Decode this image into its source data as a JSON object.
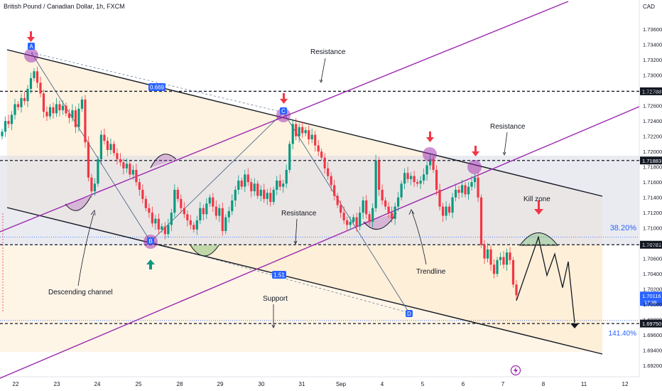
{
  "header": {
    "symbol_title": "British Pound / Canadian Dollar, 1h, FXCM",
    "currency": "CAD",
    "series_color": "#089981",
    "down_color": "#f23645"
  },
  "chart_data": {
    "type": "candlestick",
    "ylim": [
      1.691,
      1.7375
    ],
    "y_ticks": [
      "1.73600",
      "1.73400",
      "1.73200",
      "1.73000",
      "1.72800",
      "1.72600",
      "1.72400",
      "1.72200",
      "1.72000",
      "1.71800",
      "1.71600",
      "1.71400",
      "1.71200",
      "1.71000",
      "1.70800",
      "1.70600",
      "1.70400",
      "1.70200",
      "1.70000",
      "1.69800",
      "1.69600",
      "1.69400",
      "1.69200"
    ],
    "x_ticks": [
      "22",
      "23",
      "24",
      "25",
      "28",
      "29",
      "30",
      "31",
      "Sep",
      "4",
      "5",
      "6",
      "7",
      "8",
      "11",
      "12"
    ],
    "price_badges": [
      {
        "label": "1.72788",
        "value": 1.72788,
        "color": "#131722"
      },
      {
        "label": "1.71883",
        "value": 1.71883,
        "color": "#131722"
      },
      {
        "label": "1.70781",
        "value": 1.70781,
        "color": "#131722"
      },
      {
        "label": "1.70116",
        "sublabel": "17:38",
        "value": 1.70116,
        "color": "#2962ff"
      },
      {
        "label": "1.69750",
        "value": 1.6975,
        "color": "#131722"
      }
    ],
    "horizontal_levels": [
      {
        "value": 1.72788,
        "style": "dashed"
      },
      {
        "value": 1.71883,
        "style": "dashed"
      },
      {
        "value": 1.70781,
        "style": "dashed"
      },
      {
        "value": 1.6975,
        "style": "dashed"
      }
    ],
    "fib_levels": [
      {
        "label": "38.20%",
        "value": 1.7088
      },
      {
        "label": "141.40%",
        "value": 1.6979
      }
    ],
    "pattern_labels": [
      "A",
      "B",
      "C",
      "D"
    ],
    "pattern_ratios": [
      "0.669",
      "1.51"
    ],
    "annotations": [
      "Resistance",
      "Resistance",
      "Resistance",
      "Kill zone",
      "Descending channel",
      "Support",
      "Trendline"
    ],
    "close": [
      1.7226,
      1.724,
      1.7236,
      1.7248,
      1.7262,
      1.7258,
      1.727,
      1.7266,
      1.7282,
      1.7296,
      1.7305,
      1.729,
      1.7276,
      1.7252,
      1.7246,
      1.7258,
      1.725,
      1.7262,
      1.7254,
      1.726,
      1.725,
      1.7244,
      1.7254,
      1.7232,
      1.7256,
      1.7268,
      1.7212,
      1.7166,
      1.7148,
      1.7158,
      1.719,
      1.7222,
      1.7214,
      1.7202,
      1.721,
      1.7198,
      1.719,
      1.7186,
      1.7178,
      1.7184,
      1.717,
      1.7176,
      1.716,
      1.715,
      1.7138,
      1.7126,
      1.712,
      1.7106,
      1.7112,
      1.7098,
      1.7102,
      1.7092,
      1.7104,
      1.712,
      1.715,
      1.7138,
      1.7126,
      1.7118,
      1.711,
      1.7104,
      1.7098,
      1.711,
      1.7126,
      1.7118,
      1.7132,
      1.714,
      1.7128,
      1.7116,
      1.7126,
      1.7096,
      1.7114,
      1.7122,
      1.7136,
      1.715,
      1.7162,
      1.7154,
      1.717,
      1.716,
      1.7148,
      1.7158,
      1.7142,
      1.715,
      1.7138,
      1.7146,
      1.7134,
      1.715,
      1.7162,
      1.7154,
      1.7158,
      1.7176,
      1.721,
      1.7236,
      1.722,
      1.7232,
      1.7224,
      1.7228,
      1.7216,
      1.7222,
      1.7208,
      1.72,
      1.7192,
      1.7178,
      1.7168,
      1.7156,
      1.7142,
      1.713,
      1.712,
      1.711,
      1.7104,
      1.7108,
      1.7114,
      1.7102,
      1.712,
      1.7136,
      1.7118,
      1.7108,
      1.7126,
      1.7188,
      1.715,
      1.7136,
      1.7128,
      1.712,
      1.7112,
      1.7128,
      1.714,
      1.7158,
      1.7172,
      1.7164,
      1.7168,
      1.716,
      1.7158,
      1.7162,
      1.717,
      1.7182,
      1.719,
      1.7176,
      1.715,
      1.7128,
      1.7116,
      1.7128,
      1.712,
      1.714,
      1.715,
      1.7146,
      1.7156,
      1.7144,
      1.7154,
      1.716,
      1.7166,
      1.714,
      1.7078,
      1.706,
      1.7072,
      1.7052,
      1.704,
      1.7058,
      1.7062,
      1.7052,
      1.7068,
      1.7058,
      1.7026,
      1.7012
    ]
  },
  "projection": [
    1.7005,
    1.7088,
    1.7038,
    1.7066,
    1.7022,
    1.7056,
    1.6976
  ],
  "footer": {
    "flash_icon": "lightning-icon"
  }
}
